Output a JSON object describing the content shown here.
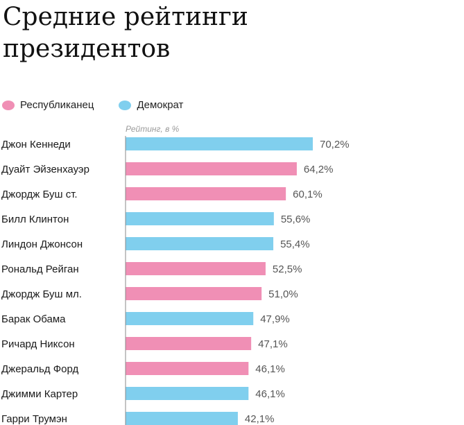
{
  "title": "Средние рейтинги президентов",
  "legend": {
    "items": [
      {
        "label": "Республиканец",
        "color": "#f08fb5"
      },
      {
        "label": "Демократ",
        "color": "#80cfee"
      }
    ]
  },
  "colors": {
    "republican": "#f08fb5",
    "democrat": "#80cfee",
    "axis": "#8a8a8a"
  },
  "chart_data": {
    "type": "bar",
    "orientation": "horizontal",
    "title": "Средние рейтинги президентов",
    "unit_label": "Рейтинг, в %",
    "xlim": [
      0,
      70.2
    ],
    "categories": [
      "Джон Кеннеди",
      "Дуайт Эйзенхауэр",
      "Джордж Буш ст.",
      "Билл Клинтон",
      "Линдон Джонсон",
      "Рональд Рейган",
      "Джордж Буш мл.",
      "Барак Обама",
      "Ричард Никсон",
      "Джеральд Форд",
      "Джимми Картер",
      "Гарри Трумэн"
    ],
    "values": [
      70.2,
      64.2,
      60.1,
      55.6,
      55.4,
      52.5,
      51.0,
      47.9,
      47.1,
      46.1,
      46.1,
      42.1
    ],
    "value_labels": [
      "70,2%",
      "64,2%",
      "60,1%",
      "55,6%",
      "55,4%",
      "52,5%",
      "51,0%",
      "47,9%",
      "47,1%",
      "46,1%",
      "46,1%",
      "42,1%"
    ],
    "party": [
      "democrat",
      "republican",
      "republican",
      "democrat",
      "democrat",
      "republican",
      "republican",
      "democrat",
      "republican",
      "republican",
      "democrat",
      "democrat"
    ],
    "legend_placement": "top-left",
    "grid": false
  }
}
